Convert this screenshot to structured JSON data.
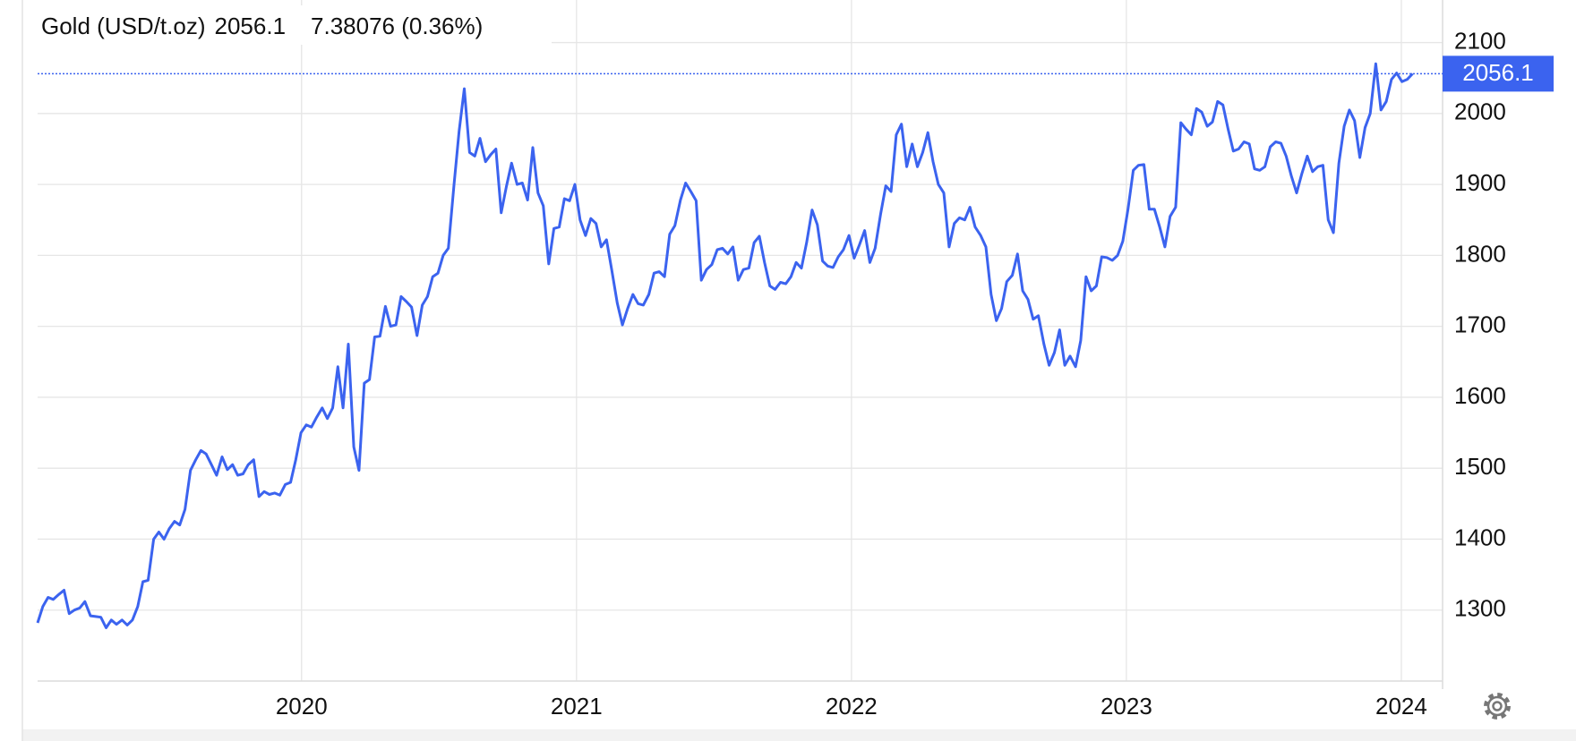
{
  "chart_data": {
    "type": "line",
    "title": "Gold (USD/t.oz)",
    "last_value": 2056.1,
    "change_label": "7.38076 (0.36%)",
    "last_color": "#3b63ef",
    "change_color": "#5cc24c",
    "grid": true,
    "xlim": [
      2019.04,
      2024.15
    ],
    "xticks": [
      2020,
      2021,
      2022,
      2023,
      2024
    ],
    "ylim": [
      1200,
      2160
    ],
    "yticks": [
      1300,
      1400,
      1500,
      1600,
      1700,
      1800,
      1900,
      2000,
      2100
    ],
    "x": [
      2019.04,
      2019.059,
      2019.078,
      2019.097,
      2019.117,
      2019.136,
      2019.155,
      2019.174,
      2019.193,
      2019.212,
      2019.232,
      2019.251,
      2019.27,
      2019.289,
      2019.308,
      2019.327,
      2019.347,
      2019.366,
      2019.385,
      2019.404,
      2019.423,
      2019.442,
      2019.462,
      2019.481,
      2019.5,
      2019.519,
      2019.538,
      2019.557,
      2019.576,
      2019.596,
      2019.615,
      2019.634,
      2019.653,
      2019.672,
      2019.691,
      2019.711,
      2019.73,
      2019.749,
      2019.768,
      2019.787,
      2019.806,
      2019.826,
      2019.845,
      2019.864,
      2019.883,
      2019.902,
      2019.921,
      2019.941,
      2019.96,
      2019.979,
      2019.998,
      2020.017,
      2020.036,
      2020.055,
      2020.075,
      2020.094,
      2020.113,
      2020.132,
      2020.151,
      2020.17,
      2020.19,
      2020.209,
      2020.228,
      2020.247,
      2020.266,
      2020.285,
      2020.305,
      2020.324,
      2020.343,
      2020.362,
      2020.381,
      2020.4,
      2020.42,
      2020.439,
      2020.458,
      2020.477,
      2020.496,
      2020.515,
      2020.534,
      2020.554,
      2020.573,
      2020.592,
      2020.611,
      2020.63,
      2020.649,
      2020.669,
      2020.688,
      2020.707,
      2020.726,
      2020.745,
      2020.764,
      2020.784,
      2020.803,
      2020.822,
      2020.841,
      2020.86,
      2020.879,
      2020.899,
      2020.918,
      2020.937,
      2020.956,
      2020.975,
      2020.994,
      2021.013,
      2021.033,
      2021.052,
      2021.071,
      2021.09,
      2021.109,
      2021.128,
      2021.148,
      2021.167,
      2021.186,
      2021.205,
      2021.224,
      2021.243,
      2021.263,
      2021.282,
      2021.301,
      2021.32,
      2021.339,
      2021.358,
      2021.378,
      2021.397,
      2021.416,
      2021.435,
      2021.454,
      2021.473,
      2021.492,
      2021.512,
      2021.531,
      2021.55,
      2021.569,
      2021.588,
      2021.607,
      2021.627,
      2021.646,
      2021.665,
      2021.684,
      2021.703,
      2021.722,
      2021.742,
      2021.761,
      2021.78,
      2021.799,
      2021.818,
      2021.837,
      2021.857,
      2021.876,
      2021.895,
      2021.914,
      2021.933,
      2021.952,
      2021.971,
      2021.991,
      2022.01,
      2022.029,
      2022.048,
      2022.067,
      2022.086,
      2022.106,
      2022.125,
      2022.144,
      2022.163,
      2022.182,
      2022.201,
      2022.221,
      2022.24,
      2022.259,
      2022.278,
      2022.297,
      2022.316,
      2022.336,
      2022.355,
      2022.374,
      2022.393,
      2022.412,
      2022.431,
      2022.45,
      2022.47,
      2022.489,
      2022.508,
      2022.527,
      2022.546,
      2022.565,
      2022.585,
      2022.604,
      2022.623,
      2022.642,
      2022.661,
      2022.68,
      2022.7,
      2022.719,
      2022.738,
      2022.757,
      2022.776,
      2022.795,
      2022.815,
      2022.834,
      2022.853,
      2022.872,
      2022.891,
      2022.91,
      2022.929,
      2022.949,
      2022.968,
      2022.987,
      2023.006,
      2023.025,
      2023.044,
      2023.064,
      2023.083,
      2023.102,
      2023.121,
      2023.14,
      2023.159,
      2023.179,
      2023.198,
      2023.217,
      2023.236,
      2023.255,
      2023.274,
      2023.294,
      2023.313,
      2023.332,
      2023.351,
      2023.37,
      2023.389,
      2023.408,
      2023.428,
      2023.447,
      2023.466,
      2023.485,
      2023.504,
      2023.523,
      2023.543,
      2023.562,
      2023.581,
      2023.6,
      2023.619,
      2023.638,
      2023.658,
      2023.677,
      2023.696,
      2023.715,
      2023.734,
      2023.753,
      2023.773,
      2023.792,
      2023.811,
      2023.83,
      2023.849,
      2023.868,
      2023.887,
      2023.907,
      2023.926,
      2023.945,
      2023.964,
      2023.983,
      2024.002,
      2024.021,
      2024.041
    ],
    "series": [
      {
        "color": "#3b63ef",
        "values": [
          1282,
          1305,
          1318,
          1315,
          1322,
          1328,
          1295,
          1300,
          1303,
          1312,
          1292,
          1291,
          1290,
          1275,
          1286,
          1280,
          1286,
          1279,
          1286,
          1305,
          1340,
          1342,
          1400,
          1410,
          1400,
          1415,
          1425,
          1420,
          1442,
          1497,
          1512,
          1525,
          1520,
          1505,
          1490,
          1516,
          1498,
          1505,
          1490,
          1492,
          1505,
          1512,
          1460,
          1467,
          1463,
          1465,
          1462,
          1477,
          1480,
          1512,
          1550,
          1561,
          1558,
          1572,
          1585,
          1570,
          1585,
          1643,
          1585,
          1675,
          1530,
          1497,
          1620,
          1625,
          1685,
          1686,
          1728,
          1700,
          1702,
          1742,
          1735,
          1727,
          1687,
          1730,
          1742,
          1770,
          1775,
          1800,
          1810,
          1898,
          1975,
          2035,
          1945,
          1940,
          1965,
          1932,
          1942,
          1950,
          1860,
          1897,
          1930,
          1900,
          1902,
          1878,
          1952,
          1888,
          1870,
          1788,
          1838,
          1840,
          1880,
          1877,
          1900,
          1850,
          1828,
          1852,
          1845,
          1812,
          1822,
          1780,
          1733,
          1702,
          1725,
          1745,
          1732,
          1730,
          1745,
          1775,
          1777,
          1770,
          1830,
          1842,
          1878,
          1902,
          1890,
          1877,
          1765,
          1780,
          1787,
          1808,
          1810,
          1802,
          1812,
          1765,
          1780,
          1782,
          1818,
          1827,
          1790,
          1757,
          1752,
          1762,
          1760,
          1770,
          1790,
          1782,
          1818,
          1864,
          1843,
          1792,
          1785,
          1783,
          1798,
          1808,
          1828,
          1796,
          1815,
          1835,
          1790,
          1810,
          1858,
          1898,
          1890,
          1970,
          1985,
          1925,
          1957,
          1925,
          1945,
          1973,
          1932,
          1900,
          1888,
          1812,
          1845,
          1853,
          1850,
          1868,
          1840,
          1828,
          1812,
          1745,
          1708,
          1725,
          1763,
          1772,
          1802,
          1750,
          1738,
          1710,
          1715,
          1675,
          1645,
          1663,
          1695,
          1645,
          1658,
          1643,
          1680,
          1770,
          1750,
          1757,
          1798,
          1797,
          1793,
          1800,
          1820,
          1865,
          1920,
          1927,
          1928,
          1865,
          1865,
          1840,
          1812,
          1855,
          1868,
          1987,
          1978,
          1970,
          2007,
          2002,
          1982,
          1988,
          2017,
          2012,
          1978,
          1947,
          1950,
          1960,
          1957,
          1922,
          1920,
          1925,
          1953,
          1960,
          1958,
          1940,
          1912,
          1888,
          1915,
          1940,
          1918,
          1925,
          1927,
          1850,
          1832,
          1930,
          1982,
          2005,
          1990,
          1938,
          1980,
          2000,
          2070,
          2005,
          2017,
          2048,
          2057,
          2045,
          2048,
          2056
        ]
      }
    ]
  }
}
